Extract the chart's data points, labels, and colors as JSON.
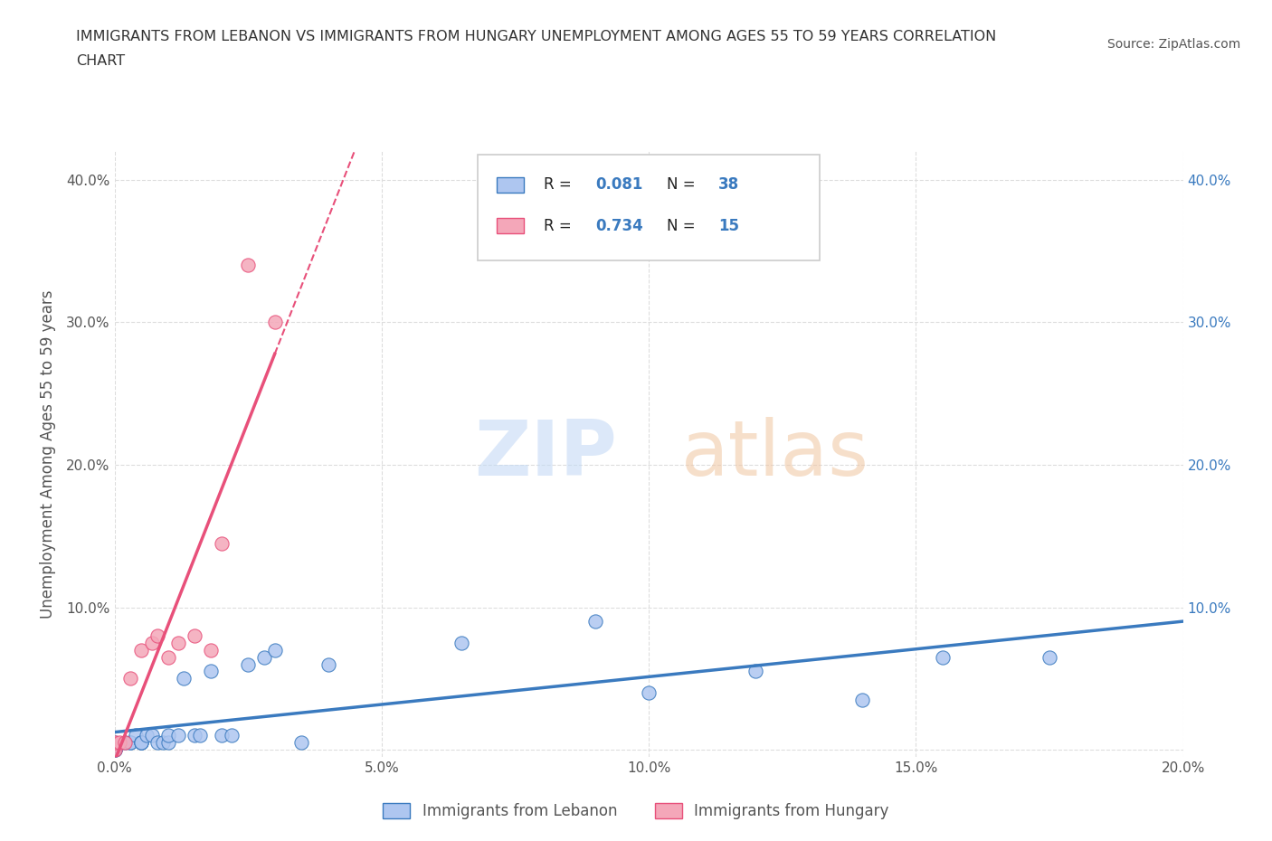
{
  "title_line1": "IMMIGRANTS FROM LEBANON VS IMMIGRANTS FROM HUNGARY UNEMPLOYMENT AMONG AGES 55 TO 59 YEARS CORRELATION",
  "title_line2": "CHART",
  "source": "Source: ZipAtlas.com",
  "ylabel": "Unemployment Among Ages 55 to 59 years",
  "xlim": [
    0.0,
    0.2
  ],
  "ylim": [
    -0.005,
    0.42
  ],
  "xticks": [
    0.0,
    0.05,
    0.1,
    0.15,
    0.2
  ],
  "yticks": [
    0.0,
    0.1,
    0.2,
    0.3,
    0.4
  ],
  "xticklabels": [
    "0.0%",
    "5.0%",
    "10.0%",
    "15.0%",
    "20.0%"
  ],
  "left_yticklabels": [
    "",
    "10.0%",
    "20.0%",
    "30.0%",
    "40.0%"
  ],
  "right_yticklabels": [
    "",
    "10.0%",
    "20.0%",
    "30.0%",
    "40.0%"
  ],
  "legend_entries": [
    {
      "label": "Immigrants from Lebanon",
      "color": "#aec6f0",
      "edge": "#3a7abf",
      "R": "0.081",
      "N": "38"
    },
    {
      "label": "Immigrants from Hungary",
      "color": "#f4a7b9",
      "edge": "#e8507a",
      "R": "0.734",
      "N": "15"
    }
  ],
  "lebanon_x": [
    0.0,
    0.0,
    0.0,
    0.0,
    0.0,
    0.0,
    0.002,
    0.003,
    0.003,
    0.004,
    0.005,
    0.005,
    0.005,
    0.006,
    0.007,
    0.008,
    0.009,
    0.01,
    0.01,
    0.012,
    0.013,
    0.015,
    0.016,
    0.018,
    0.02,
    0.022,
    0.025,
    0.028,
    0.03,
    0.035,
    0.04,
    0.065,
    0.09,
    0.1,
    0.12,
    0.14,
    0.155,
    0.175
  ],
  "lebanon_y": [
    0.0,
    0.0,
    0.0,
    0.002,
    0.003,
    0.005,
    0.005,
    0.005,
    0.005,
    0.01,
    0.005,
    0.005,
    0.005,
    0.01,
    0.01,
    0.005,
    0.005,
    0.005,
    0.01,
    0.01,
    0.05,
    0.01,
    0.01,
    0.055,
    0.01,
    0.01,
    0.06,
    0.065,
    0.07,
    0.005,
    0.06,
    0.075,
    0.09,
    0.04,
    0.055,
    0.035,
    0.065,
    0.065
  ],
  "hungary_x": [
    0.0,
    0.0,
    0.001,
    0.002,
    0.003,
    0.005,
    0.007,
    0.008,
    0.01,
    0.012,
    0.015,
    0.018,
    0.02,
    0.025,
    0.03
  ],
  "hungary_y": [
    0.0,
    0.005,
    0.005,
    0.005,
    0.05,
    0.07,
    0.075,
    0.08,
    0.065,
    0.075,
    0.08,
    0.07,
    0.145,
    0.34,
    0.3
  ],
  "lebanon_line_color": "#3a7abf",
  "hungary_line_color": "#e8507a",
  "watermark_zip": "ZIP",
  "watermark_atlas": "atlas",
  "background_color": "#ffffff",
  "grid_color": "#dddddd",
  "title_color": "#333333",
  "axis_label_color": "#555555",
  "right_tick_color": "#3a7abf"
}
